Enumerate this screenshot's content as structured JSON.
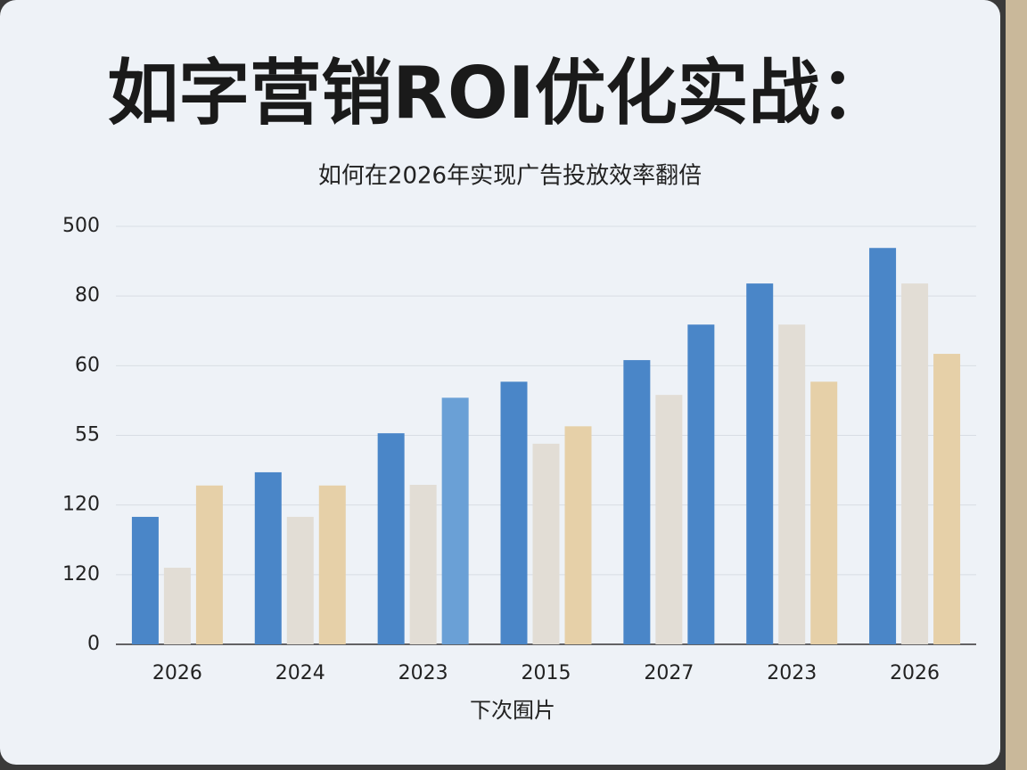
{
  "chart_data": {
    "type": "bar",
    "title": "如字营销ROI优化实战：",
    "subtitle": "如何在2026年实现广告投放效率翻倍",
    "x_label": "下次囿片",
    "categories": [
      "2026",
      "2024",
      "2023",
      "2015",
      "2027",
      "2023",
      "2026"
    ],
    "series": [
      {
        "color": "#4a86c8",
        "values": [
          1.83,
          2.47,
          3.03,
          3.77,
          4.08,
          5.18,
          5.69
        ]
      },
      {
        "color": "#e2ddd5",
        "values": [
          1.1,
          1.83,
          2.29,
          2.88,
          3.58,
          4.59,
          5.18
        ]
      },
      {
        "color": "#e6d0a8",
        "colors": [
          "#e6d0a8",
          "#e6d0a8",
          "#6aa0d6",
          "#e6d0a8",
          "#4a86c8",
          "#e6d0a8",
          "#e6d0a8"
        ],
        "values": [
          2.28,
          2.28,
          3.54,
          3.13,
          4.59,
          3.77,
          4.17
        ]
      }
    ],
    "ylim": [
      0,
      6
    ],
    "yticks": [
      {
        "value": 0,
        "label": "0"
      },
      {
        "value": 1,
        "label": "120"
      },
      {
        "value": 2,
        "label": "120"
      },
      {
        "value": 3,
        "label": "55"
      },
      {
        "value": 4,
        "label": "60"
      },
      {
        "value": 5,
        "label": "80"
      },
      {
        "value": 6,
        "label": "500"
      }
    ],
    "grid": true
  }
}
